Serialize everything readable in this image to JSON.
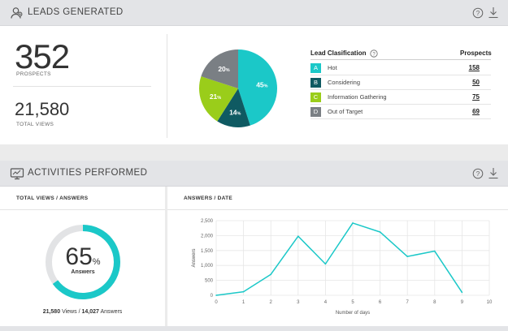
{
  "leads": {
    "title": "LEADS GENERATED",
    "prospects_value": "352",
    "prospects_label": "PROSPECTS",
    "views_value": "21,580",
    "views_label": "TOTAL VIEWS",
    "legend": {
      "title": "Lead Clasification",
      "prospects_header": "Prospects",
      "rows": [
        {
          "letter": "A",
          "name": "Hot",
          "value": "158",
          "color": "#1bc8c8"
        },
        {
          "letter": "B",
          "name": "Considering",
          "value": "50",
          "color": "#0f5a62"
        },
        {
          "letter": "C",
          "name": "Information Gathering",
          "value": "75",
          "color": "#9acd1a"
        },
        {
          "letter": "D",
          "name": "Out of Target",
          "value": "69",
          "color": "#7a7f84"
        }
      ]
    },
    "pie": {
      "slices": [
        {
          "label": "45",
          "unit": "%",
          "value": 45,
          "color": "#1bc8c8"
        },
        {
          "label": "14",
          "unit": "%",
          "value": 14,
          "color": "#0f5a62"
        },
        {
          "label": "21",
          "unit": "%",
          "value": 21,
          "color": "#9acd1a"
        },
        {
          "label": "20",
          "unit": "%",
          "value": 20,
          "color": "#7a7f84"
        }
      ]
    }
  },
  "activities": {
    "title": "ACTIVITIES PERFORMED",
    "views_panel": {
      "title": "TOTAL VIEWS / ANSWERS",
      "percent_value": "65",
      "percent_unit": "%",
      "percent": 65,
      "percent_label": "Answers",
      "views": "21,580",
      "views_word": "Views",
      "separator": "/",
      "answers": "14,027",
      "answers_word": "Answers",
      "ring_color": "#1bc8c8",
      "ring_bg": "#e2e3e5"
    },
    "answers_panel": {
      "title": "ANSWERS / DATE"
    }
  },
  "icons": {
    "leads_header": "people-icon",
    "activities_header": "monitor-icon",
    "help": "help-circle-icon",
    "download": "download-icon"
  },
  "chart_data": {
    "type": "line",
    "x": [
      0,
      1,
      2,
      3,
      4,
      5,
      6,
      7,
      8,
      9,
      10
    ],
    "series": [
      {
        "values": [
          0,
          120,
          700,
          1980,
          1050,
          2420,
          2120,
          1300,
          1480,
          100,
          null
        ],
        "color": "#1bc8c8"
      }
    ],
    "xlabel": "Number of days",
    "ylabel": "Answers",
    "xlim": [
      0,
      10
    ],
    "ylim": [
      0,
      2500
    ],
    "yticks": [
      0,
      500,
      1000,
      1500,
      2000,
      2500
    ],
    "ytick_labels": [
      "0",
      "500",
      "1,000",
      "1,500",
      "2,000",
      "2,500"
    ],
    "xticks": [
      0,
      1,
      2,
      3,
      4,
      5,
      6,
      7,
      8,
      9,
      10
    ],
    "grid": true
  }
}
